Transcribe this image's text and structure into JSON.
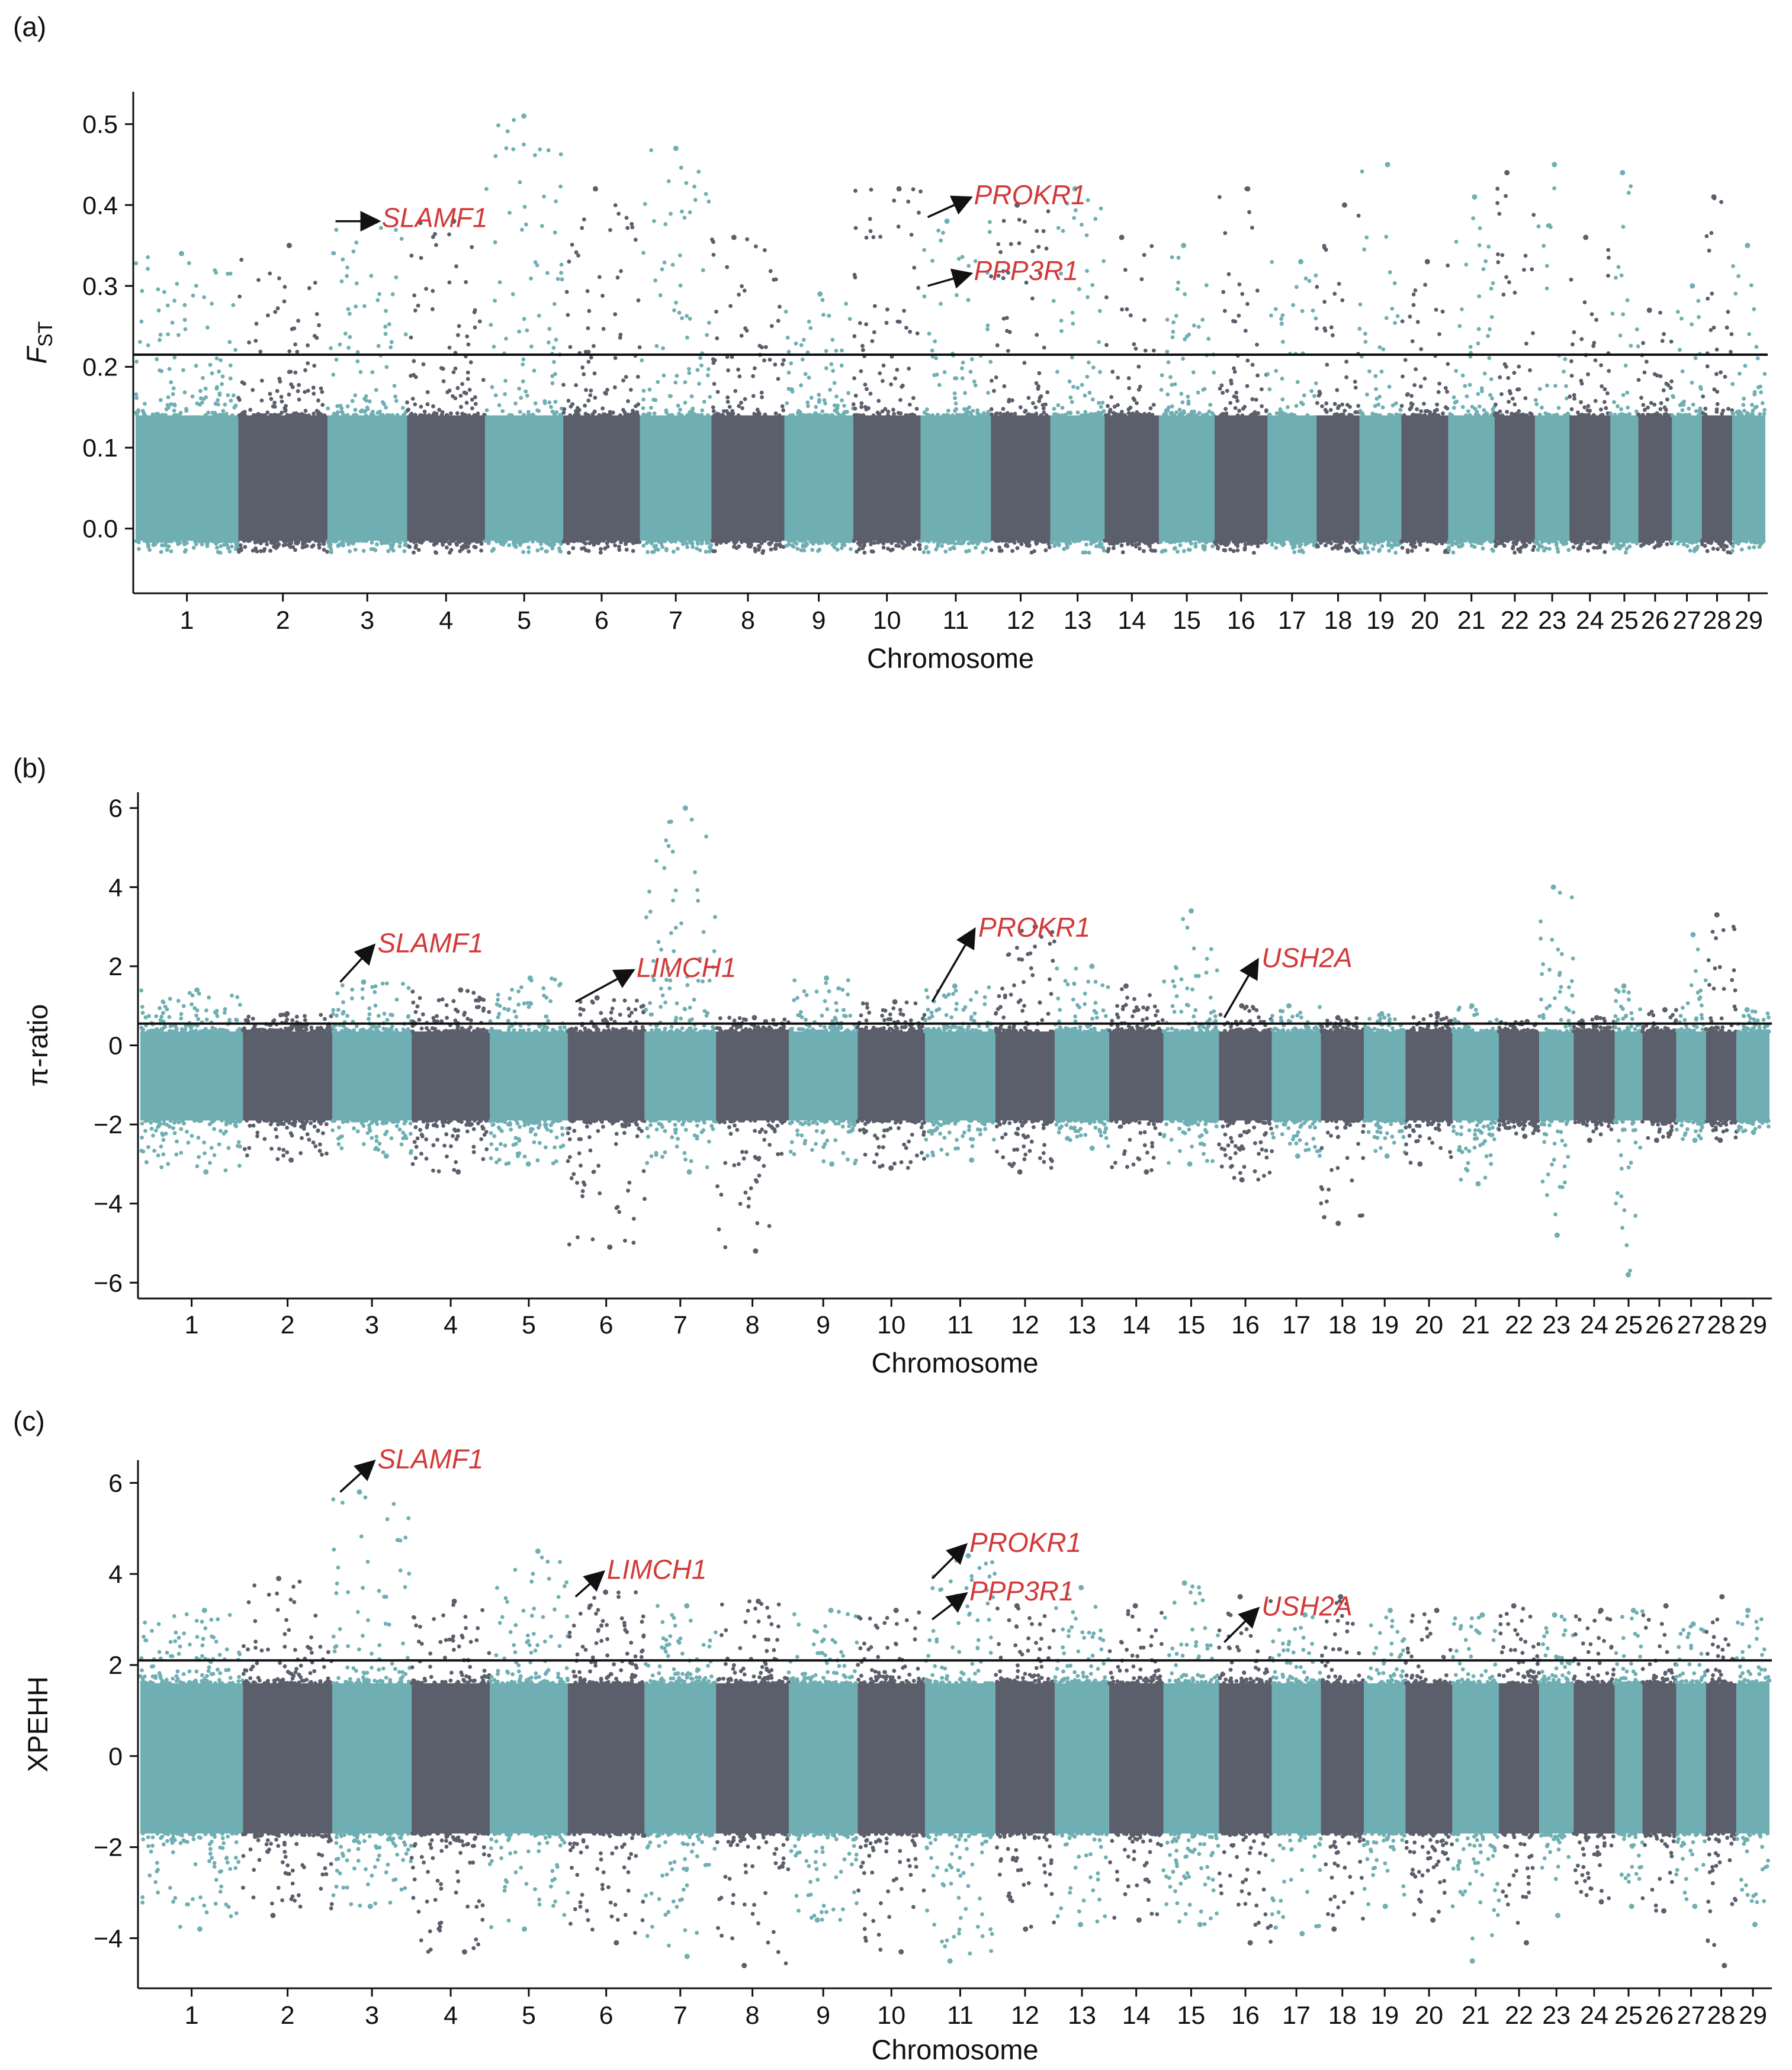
{
  "panels": [
    {
      "letter": "(a)",
      "ylabel_main": "F",
      "ylabel_sub": "ST",
      "xlabel": "Chromosome",
      "threshold": 0.215,
      "yticks": [
        "0.5",
        "0.4",
        "0.3",
        "0.2",
        "0.1",
        "0.0"
      ]
    },
    {
      "letter": "(b)",
      "ylabel_main": "π-ratio",
      "ylabel_sub": "",
      "xlabel": "Chromosome",
      "threshold": 0.55,
      "yticks": [
        "6",
        "4",
        "2",
        "0",
        "−2",
        "−4",
        "−6"
      ]
    },
    {
      "letter": "(c)",
      "ylabel_main": "XPEHH",
      "ylabel_sub": "",
      "xlabel": "Chromosome",
      "threshold": 2.1,
      "yticks": [
        "6",
        "4",
        "2",
        "0",
        "−2",
        "−4"
      ]
    }
  ],
  "chromosomes": [
    "1",
    "2",
    "3",
    "4",
    "5",
    "6",
    "7",
    "8",
    "9",
    "10",
    "11",
    "12",
    "13",
    "14",
    "15",
    "16",
    "17",
    "18",
    "19",
    "20",
    "21",
    "22",
    "23",
    "24",
    "25",
    "26",
    "27",
    "28",
    "29"
  ],
  "colors": {
    "teal": "#6fafb3",
    "slate": "#5b5e6b",
    "gene": "#d33a3a",
    "axis": "#111111"
  },
  "chart_data": [
    {
      "type": "scatter",
      "title": "",
      "xlabel": "Chromosome",
      "ylabel": "FST",
      "ylim": [
        -0.08,
        0.54
      ],
      "threshold_line": 0.215,
      "series": [
        {
          "name": "",
          "chromosome_peak_values": [
            0.34,
            0.35,
            0.38,
            0.38,
            0.51,
            0.42,
            0.47,
            0.36,
            0.29,
            0.42,
            0.38,
            0.4,
            0.42,
            0.36,
            0.35,
            0.42,
            0.33,
            0.4,
            0.45,
            0.33,
            0.41,
            0.44,
            0.45,
            0.36,
            0.44,
            0.27,
            0.3,
            0.41,
            0.35
          ]
        }
      ],
      "annotations": [
        {
          "gene": "SLAMF1",
          "chromosome": "3",
          "y": 0.38
        },
        {
          "gene": "PROKR1",
          "chromosome": "11",
          "y": 0.385
        },
        {
          "gene": "PPP3R1",
          "chromosome": "11",
          "y": 0.3
        }
      ]
    },
    {
      "type": "scatter",
      "title": "",
      "xlabel": "Chromosome",
      "ylabel": "π-ratio",
      "ylim": [
        -6.4,
        6.4
      ],
      "threshold_line": 0.55,
      "series": [
        {
          "name": "",
          "chromosome_peak_values": [
            1.4,
            0.8,
            1.6,
            1.4,
            1.7,
            1.2,
            6.0,
            0.7,
            1.7,
            1.1,
            1.5,
            3.0,
            2.0,
            1.5,
            3.4,
            1.0,
            1.0,
            0.7,
            0.8,
            0.8,
            1.0,
            0.6,
            4.0,
            0.7,
            1.5,
            0.9,
            2.8,
            3.3,
            0.9
          ]
        },
        {
          "name": "",
          "chromosome_min_values": [
            -3.2,
            -2.9,
            -2.8,
            -3.2,
            -3.0,
            -5.1,
            -3.2,
            -5.2,
            -3.0,
            -3.1,
            -2.9,
            -3.2,
            -2.6,
            -3.2,
            -3.0,
            -3.4,
            -2.8,
            -4.5,
            -2.8,
            -3.0,
            -3.5,
            -2.3,
            -4.8,
            -2.4,
            -5.8,
            -2.4,
            -2.4,
            -2.4,
            -2.2
          ]
        }
      ],
      "annotations": [
        {
          "gene": "SLAMF1",
          "chromosome": "3",
          "y": 1.6
        },
        {
          "gene": "LIMCH1",
          "chromosome": "6",
          "y": 1.1
        },
        {
          "gene": "PROKR1",
          "chromosome": "11",
          "y": 1.1
        },
        {
          "gene": "USH2A",
          "chromosome": "16",
          "y": 0.7
        }
      ]
    },
    {
      "type": "scatter",
      "title": "",
      "xlabel": "Chromosome",
      "ylabel": "XPEHH",
      "ylim": [
        -5.1,
        6.5
      ],
      "threshold_line": 2.1,
      "series": [
        {
          "name": "",
          "chromosome_peak_values": [
            3.2,
            3.9,
            5.8,
            3.4,
            4.5,
            3.6,
            3.3,
            3.4,
            3.2,
            3.2,
            4.4,
            3.3,
            3.7,
            3.3,
            3.8,
            3.5,
            3.1,
            3.5,
            3.2,
            3.2,
            3.1,
            3.3,
            3.1,
            3.2,
            3.2,
            3.3,
            2.9,
            3.5,
            3.2
          ]
        },
        {
          "name": "",
          "chromosome_min_values": [
            -3.8,
            -3.5,
            -3.3,
            -4.3,
            -3.8,
            -4.1,
            -4.4,
            -4.6,
            -3.6,
            -4.3,
            -4.5,
            -3.8,
            -3.7,
            -3.6,
            -3.7,
            -4.1,
            -3.9,
            -3.8,
            -3.3,
            -3.6,
            -4.5,
            -4.1,
            -3.5,
            -3.2,
            -3.3,
            -3.4,
            -3.3,
            -4.6,
            -3.7
          ]
        }
      ],
      "annotations": [
        {
          "gene": "SLAMF1",
          "chromosome": "3",
          "y": 5.8
        },
        {
          "gene": "LIMCH1",
          "chromosome": "6",
          "y": 3.5
        },
        {
          "gene": "PROKR1",
          "chromosome": "11",
          "y": 3.9
        },
        {
          "gene": "PPP3R1",
          "chromosome": "11",
          "y": 3.0
        },
        {
          "gene": "USH2A",
          "chromosome": "16",
          "y": 2.5
        }
      ]
    }
  ]
}
